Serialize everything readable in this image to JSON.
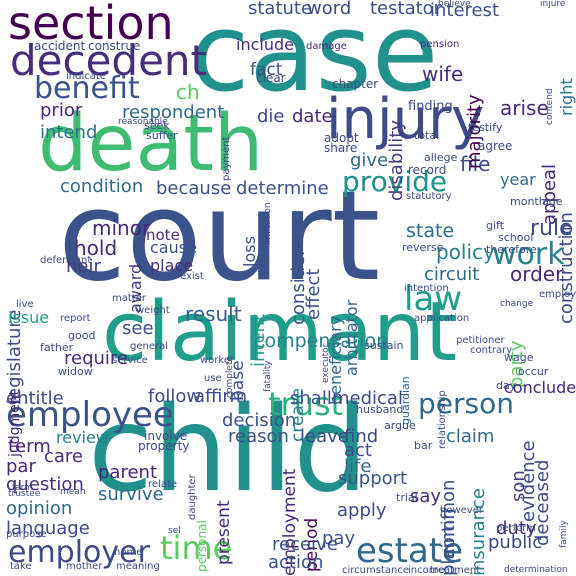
{
  "words": [
    {
      "text": "court",
      "color": "#3b528b"
    },
    {
      "text": "case",
      "color": "#21918c"
    },
    {
      "text": "child",
      "color": "#21918c"
    },
    {
      "text": "death",
      "color": "#3fbc73"
    },
    {
      "text": "claimant",
      "color": "#1f9e89"
    },
    {
      "text": "injury",
      "color": "#3e4a89"
    },
    {
      "text": "section",
      "color": "#440154"
    },
    {
      "text": "decedent",
      "color": "#472d7b"
    },
    {
      "text": "employee",
      "color": "#3b528b"
    },
    {
      "text": "employer",
      "color": "#3e4a89"
    },
    {
      "text": "time",
      "color": "#5ec962"
    },
    {
      "text": "estate",
      "color": "#31688e"
    },
    {
      "text": "law",
      "color": "#1f9e89"
    },
    {
      "text": "benefit",
      "color": "#3b528b"
    },
    {
      "text": "trust",
      "color": "#2db27d"
    },
    {
      "text": "person",
      "color": "#31688e"
    },
    {
      "text": "work",
      "color": "#26828e"
    },
    {
      "text": "provide",
      "color": "#21918c"
    },
    {
      "text": "compensation",
      "color": "#26828e"
    },
    {
      "text": "result",
      "color": "#355f8d"
    },
    {
      "text": "statute",
      "color": "#3b528b"
    },
    {
      "text": "word",
      "color": "#3e4a89"
    },
    {
      "text": "testator",
      "color": "#3b528b"
    },
    {
      "text": "interest",
      "color": "#3b528b"
    },
    {
      "text": "include",
      "color": "#472d7b"
    },
    {
      "text": "fact",
      "color": "#3b528b"
    },
    {
      "text": "wife",
      "color": "#472d7b"
    },
    {
      "text": "arise",
      "color": "#482878"
    },
    {
      "text": "respondent",
      "color": "#31688e"
    },
    {
      "text": "die",
      "color": "#3e4a89"
    },
    {
      "text": "date",
      "color": "#482878"
    },
    {
      "text": "prior",
      "color": "#482878"
    },
    {
      "text": "intend",
      "color": "#2c728e"
    },
    {
      "text": "because",
      "color": "#3b528b"
    },
    {
      "text": "determine",
      "color": "#3b528b"
    },
    {
      "text": "condition",
      "color": "#31688e"
    },
    {
      "text": "give",
      "color": "#31688e"
    },
    {
      "text": "file",
      "color": "#3e4a89"
    },
    {
      "text": "year",
      "color": "#31688e"
    },
    {
      "text": "state",
      "color": "#31688e"
    },
    {
      "text": "policy",
      "color": "#26828e"
    },
    {
      "text": "circuit",
      "color": "#31688e"
    },
    {
      "text": "order",
      "color": "#482878"
    },
    {
      "text": "rule",
      "color": "#3e4a89"
    },
    {
      "text": "hold",
      "color": "#482878"
    },
    {
      "text": "heir",
      "color": "#443983"
    },
    {
      "text": "minor",
      "color": "#482878"
    },
    {
      "text": "award",
      "color": "#443983"
    },
    {
      "text": "note",
      "color": "#472d7b"
    },
    {
      "text": "cause",
      "color": "#3b528b"
    },
    {
      "text": "place",
      "color": "#472d7b"
    },
    {
      "text": "loss",
      "color": "#3b528b"
    },
    {
      "text": "effect",
      "color": "#3b528b"
    },
    {
      "text": "consider",
      "color": "#3b528b"
    },
    {
      "text": "majority",
      "color": "#440154"
    },
    {
      "text": "disability",
      "color": "#443983"
    },
    {
      "text": "appeal",
      "color": "#482878"
    },
    {
      "text": "construction",
      "color": "#3e4a89"
    },
    {
      "text": "right",
      "color": "#2c728e"
    },
    {
      "text": "beneficiary",
      "color": "#31688e"
    },
    {
      "text": "arbitrator",
      "color": "#31688e"
    },
    {
      "text": "intent",
      "color": "#1f9e89"
    },
    {
      "text": "legislature",
      "color": "#3e4a89"
    },
    {
      "text": "issue",
      "color": "#20a486"
    },
    {
      "text": "see",
      "color": "#3e4a89"
    },
    {
      "text": "require",
      "color": "#472d7b"
    },
    {
      "text": "follow",
      "color": "#3e4a89"
    },
    {
      "text": "affirm",
      "color": "#3e4a89"
    },
    {
      "text": "entitle",
      "color": "#3e4a89"
    },
    {
      "text": "term",
      "color": "#482878"
    },
    {
      "text": "par",
      "color": "#482878"
    },
    {
      "text": "care",
      "color": "#472d7b"
    },
    {
      "text": "review",
      "color": "#26828e"
    },
    {
      "text": "question",
      "color": "#472d7b"
    },
    {
      "text": "opinion",
      "color": "#31688e"
    },
    {
      "text": "language",
      "color": "#3e4a89"
    },
    {
      "text": "parent",
      "color": "#482878"
    },
    {
      "text": "survive",
      "color": "#31688e"
    },
    {
      "text": "decision",
      "color": "#3b528b"
    },
    {
      "text": "reason",
      "color": "#3b528b"
    },
    {
      "text": "base",
      "color": "#3b528b"
    },
    {
      "text": "create",
      "color": "#26828e"
    },
    {
      "text": "present",
      "color": "#482878"
    },
    {
      "text": "shall",
      "color": "#3b528b"
    },
    {
      "text": "medical",
      "color": "#3e4a89"
    },
    {
      "text": "leave",
      "color": "#3e4a89"
    },
    {
      "text": "find",
      "color": "#3e4a89"
    },
    {
      "text": "act",
      "color": "#3e4a89"
    },
    {
      "text": "life",
      "color": "#31688e"
    },
    {
      "text": "support",
      "color": "#3b528b"
    },
    {
      "text": "apply",
      "color": "#3e4a89"
    },
    {
      "text": "say",
      "color": "#472d7b"
    },
    {
      "text": "employment",
      "color": "#482878"
    },
    {
      "text": "period",
      "color": "#440154"
    },
    {
      "text": "receive",
      "color": "#3b528b"
    },
    {
      "text": "pay",
      "color": "#3b528b"
    },
    {
      "text": "action",
      "color": "#3b528b"
    },
    {
      "text": "claim",
      "color": "#31688e"
    },
    {
      "text": "plaintiff",
      "color": "#3b528b"
    },
    {
      "text": "common",
      "color": "#3b528b"
    },
    {
      "text": "insurance",
      "color": "#26828e"
    },
    {
      "text": "evidence",
      "color": "#3e4a89"
    },
    {
      "text": "party",
      "color": "#5ec962"
    },
    {
      "text": "conclude",
      "color": "#482878"
    },
    {
      "text": "deceased",
      "color": "#3e4a89"
    },
    {
      "text": "son",
      "color": "#443983"
    },
    {
      "text": "duty",
      "color": "#472d7b"
    },
    {
      "text": "public",
      "color": "#3e4a89"
    },
    {
      "text": "judgment",
      "color": "#482878"
    },
    {
      "text": "accident",
      "color": "#3e4a89"
    },
    {
      "text": "construe",
      "color": "#3e4a89"
    },
    {
      "text": "chapter",
      "color": "#3b528b"
    },
    {
      "text": "clear",
      "color": "#3e4a89"
    },
    {
      "text": "adopt",
      "color": "#3e4a89"
    },
    {
      "text": "share",
      "color": "#3e4a89"
    },
    {
      "text": "finding",
      "color": "#3e4a89"
    },
    {
      "text": "agree",
      "color": "#3e4a89"
    },
    {
      "text": "record",
      "color": "#3e4a89"
    },
    {
      "text": "month",
      "color": "#3e4a89"
    },
    {
      "text": "age",
      "color": "#3e4a89"
    },
    {
      "text": "allege",
      "color": "#3e4a89"
    },
    {
      "text": "testify",
      "color": "#3e4a89"
    },
    {
      "text": "pension",
      "color": "#482878"
    },
    {
      "text": "damage",
      "color": "#482878"
    },
    {
      "text": "gift",
      "color": "#3e4a89"
    },
    {
      "text": "school",
      "color": "#3e4a89"
    },
    {
      "text": "therefore",
      "color": "#3e4a89"
    },
    {
      "text": "reverse",
      "color": "#3e4a89"
    },
    {
      "text": "intention",
      "color": "#3e4a89"
    },
    {
      "text": "application",
      "color": "#3e4a89"
    },
    {
      "text": "employ",
      "color": "#3e4a89"
    },
    {
      "text": "change",
      "color": "#3e4a89"
    },
    {
      "text": "relationship",
      "color": "#3e4a89"
    },
    {
      "text": "guardian",
      "color": "#31688e"
    },
    {
      "text": "sustain",
      "color": "#3e4a89"
    },
    {
      "text": "occur",
      "color": "#3e4a89"
    },
    {
      "text": "wage",
      "color": "#3e4a89"
    },
    {
      "text": "petitioner",
      "color": "#3e4a89"
    },
    {
      "text": "contrary",
      "color": "#3e4a89"
    },
    {
      "text": "day",
      "color": "#3e4a89"
    },
    {
      "text": "husband",
      "color": "#3e4a89"
    },
    {
      "text": "argue",
      "color": "#3e4a89"
    },
    {
      "text": "trial",
      "color": "#3e4a89"
    },
    {
      "text": "bar",
      "color": "#3e4a89"
    },
    {
      "text": "however",
      "color": "#3e4a89"
    },
    {
      "text": "perform",
      "color": "#3e4a89"
    },
    {
      "text": "family",
      "color": "#3e4a89"
    },
    {
      "text": "determination",
      "color": "#3e4a89"
    },
    {
      "text": "treatment",
      "color": "#3e4a89"
    },
    {
      "text": "circumstance",
      "color": "#3e4a89"
    },
    {
      "text": "income",
      "color": "#3e4a89"
    },
    {
      "text": "property",
      "color": "#3e4a89"
    },
    {
      "text": "involve",
      "color": "#3e4a89"
    },
    {
      "text": "personal",
      "color": "#5ec962"
    },
    {
      "text": "daughter",
      "color": "#3e4a89"
    },
    {
      "text": "mother",
      "color": "#3e4a89"
    },
    {
      "text": "meaning",
      "color": "#3e4a89"
    },
    {
      "text": "home",
      "color": "#3e4a89"
    },
    {
      "text": "purpose",
      "color": "#3e4a89"
    },
    {
      "text": "relate",
      "color": "#3e4a89"
    },
    {
      "text": "trustee",
      "color": "#3e4a89"
    },
    {
      "text": "farm",
      "color": "#3e4a89"
    },
    {
      "text": "mean",
      "color": "#3e4a89"
    },
    {
      "text": "widow",
      "color": "#3e4a89"
    },
    {
      "text": "father",
      "color": "#3e4a89"
    },
    {
      "text": "good",
      "color": "#3e4a89"
    },
    {
      "text": "report",
      "color": "#3e4a89"
    },
    {
      "text": "live",
      "color": "#3e4a89"
    },
    {
      "text": "matter",
      "color": "#3e4a89"
    },
    {
      "text": "weight",
      "color": "#3e4a89"
    },
    {
      "text": "general",
      "color": "#3e4a89"
    },
    {
      "text": "service",
      "color": "#3e4a89"
    },
    {
      "text": "worker",
      "color": "#3e4a89"
    },
    {
      "text": "use",
      "color": "#3e4a89"
    },
    {
      "text": "exist",
      "color": "#3e4a89"
    },
    {
      "text": "defendant",
      "color": "#3e4a89"
    },
    {
      "text": "limitation",
      "color": "#3e4a89"
    },
    {
      "text": "statutory",
      "color": "#3e4a89"
    },
    {
      "text": "payment",
      "color": "#3e4a89"
    },
    {
      "text": "suffer",
      "color": "#3e4a89"
    },
    {
      "text": "seek",
      "color": "#3e4a89"
    },
    {
      "text": "reasonable",
      "color": "#3e4a89"
    },
    {
      "text": "indicate",
      "color": "#3e4a89"
    },
    {
      "text": "believe",
      "color": "#3e4a89"
    },
    {
      "text": "injure",
      "color": "#3e4a89"
    },
    {
      "text": "contend",
      "color": "#3e4a89"
    },
    {
      "text": "total",
      "color": "#3e4a89"
    },
    {
      "text": "ch",
      "color": "#5ec962"
    },
    {
      "text": "executor",
      "color": "#3e4a89"
    },
    {
      "text": "fatality",
      "color": "#3e4a89"
    },
    {
      "text": "sel",
      "color": "#3e4a89"
    },
    {
      "text": "take",
      "color": "#3e4a89"
    },
    {
      "text": "complete",
      "color": "#3e4a89"
    }
  ]
}
